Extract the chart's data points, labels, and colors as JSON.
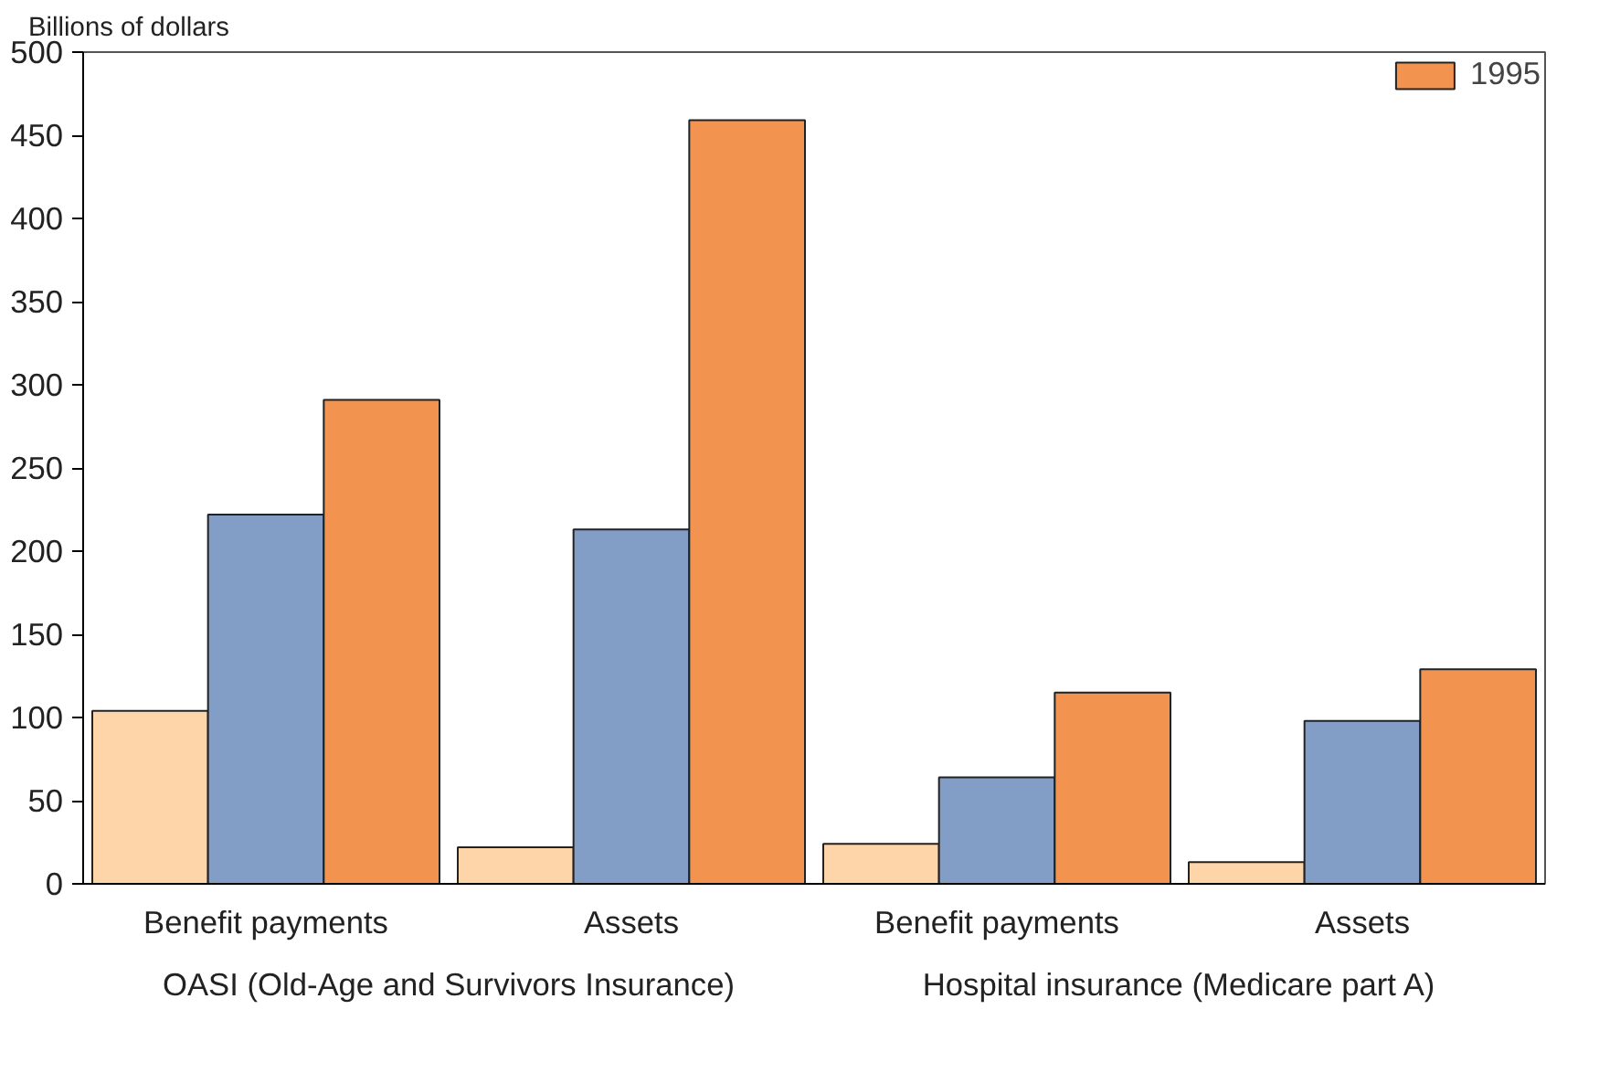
{
  "chart_data": {
    "type": "bar",
    "ylabel": "Billions of dollars",
    "categories": [
      "Benefit payments",
      "Assets",
      "Benefit payments",
      "Assets"
    ],
    "series": [
      {
        "color": "#fdd5a8",
        "values": [
          104,
          22,
          24,
          13
        ]
      },
      {
        "color": "#839ec6",
        "values": [
          222,
          213,
          64,
          98
        ]
      },
      {
        "name": "1995",
        "color": "#f39350",
        "values": [
          291,
          459,
          115,
          129
        ]
      }
    ],
    "ylim": [
      0,
      500
    ],
    "yticks": [
      0,
      50,
      100,
      150,
      200,
      250,
      300,
      350,
      400,
      450,
      500
    ],
    "grid": false,
    "legend": "top right",
    "annotations": [
      "OASI (Old-Age and Survivors Insurance)",
      "Hospital insurance (Medicare part A)"
    ]
  }
}
